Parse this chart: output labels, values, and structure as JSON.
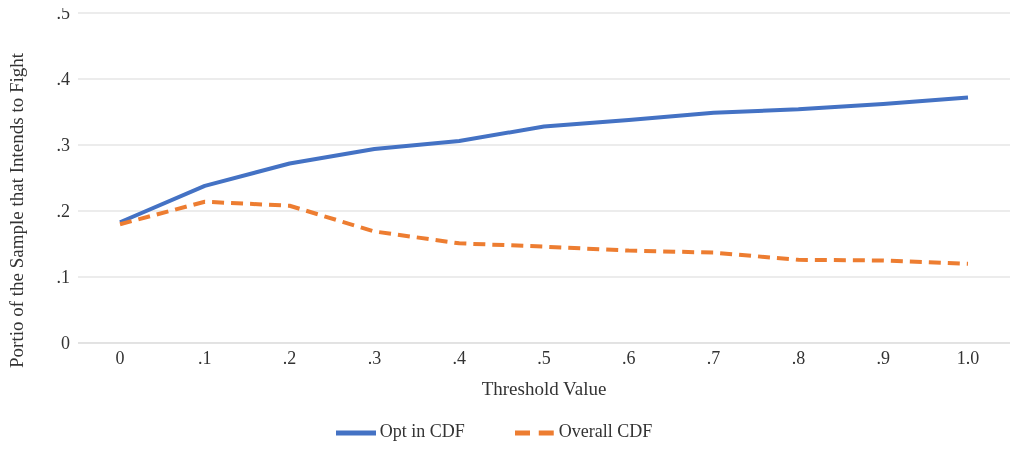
{
  "chart_data": {
    "type": "line",
    "xlabel": "Threshold Value",
    "ylabel": "Portio of the Sample that Intends to Fight",
    "categories": [
      "0",
      ".1",
      ".2",
      ".3",
      ".4",
      ".5",
      ".6",
      ".7",
      ".8",
      ".9",
      "1.0"
    ],
    "series": [
      {
        "name": "Opt in CDF",
        "color": "#4472c4",
        "line_style": "solid",
        "values": [
          0.183,
          0.238,
          0.272,
          0.294,
          0.306,
          0.328,
          0.338,
          0.349,
          0.354,
          0.362,
          0.372
        ]
      },
      {
        "name": "Overall CDF",
        "color": "#ed7d31",
        "line_style": "dashed",
        "values": [
          0.18,
          0.214,
          0.208,
          0.169,
          0.151,
          0.146,
          0.14,
          0.137,
          0.126,
          0.125,
          0.12
        ]
      }
    ],
    "ylim": [
      0,
      0.5
    ],
    "yticks": [
      {
        "value": 0,
        "label": "0"
      },
      {
        "value": 0.1,
        "label": ".1"
      },
      {
        "value": 0.2,
        "label": ".2"
      },
      {
        "value": 0.3,
        "label": ".3"
      },
      {
        "value": 0.4,
        "label": ".4"
      },
      {
        "value": 0.5,
        "label": ".5"
      }
    ],
    "grid": "y",
    "legend": "bottom",
    "marker": "none"
  }
}
